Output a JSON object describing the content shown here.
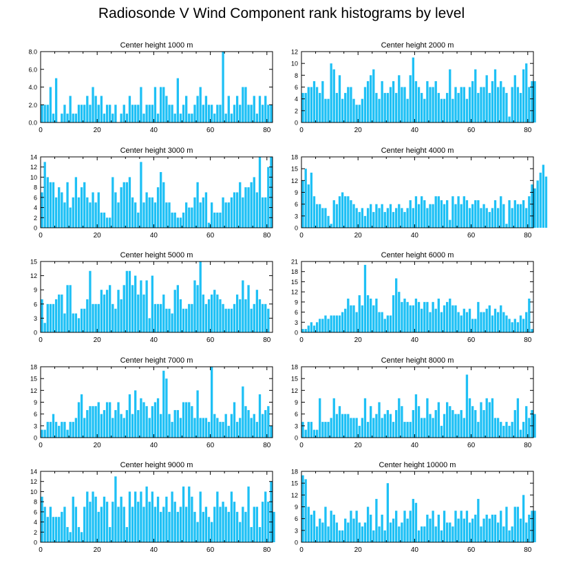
{
  "figure_title": "Radiosonde V Wind Component rank histograms by level",
  "chart_data": [
    {
      "type": "bar",
      "title": "Center height 1000 m",
      "xlim": [
        0,
        82
      ],
      "ylim": [
        0,
        8
      ],
      "xticks": [
        0,
        20,
        40,
        60,
        80
      ],
      "yticks": [
        "0.0",
        "2.0",
        "4.0",
        "6.0",
        "8.0"
      ],
      "values": [
        2,
        2,
        2,
        4,
        1,
        5,
        0,
        1,
        2,
        1,
        3,
        1,
        1,
        2,
        2,
        2,
        3,
        2,
        4,
        3,
        2,
        3,
        1,
        2,
        2,
        1,
        2,
        0,
        1,
        2,
        1,
        3,
        2,
        2,
        2,
        4,
        1,
        2,
        2,
        2,
        4,
        1,
        4,
        4,
        3,
        2,
        2,
        1,
        5,
        1,
        2,
        3,
        1,
        1,
        2,
        3,
        4,
        2,
        3,
        2,
        2,
        1,
        2,
        2,
        8,
        1,
        3,
        1,
        2,
        3,
        2,
        4,
        4,
        2,
        2,
        3,
        1,
        3,
        2,
        3,
        2,
        2
      ]
    },
    {
      "type": "bar",
      "title": "Center height 2000 m",
      "xlim": [
        0,
        82
      ],
      "ylim": [
        0,
        12
      ],
      "xticks": [
        0,
        20,
        40,
        60,
        80
      ],
      "yticks": [
        "0",
        "2",
        "4",
        "6",
        "8",
        "10",
        "12"
      ],
      "values": [
        5,
        5,
        6,
        6,
        7,
        6,
        5,
        7,
        4,
        4,
        10,
        9,
        5,
        8,
        4,
        5,
        6,
        6,
        4,
        3,
        3,
        4,
        6,
        7,
        8,
        9,
        5,
        4,
        7,
        5,
        5,
        6,
        7,
        5,
        8,
        6,
        6,
        4,
        8,
        11,
        7,
        6,
        5,
        4,
        7,
        6,
        6,
        7,
        5,
        4,
        4,
        5,
        9,
        4,
        6,
        5,
        6,
        6,
        4,
        6,
        7,
        9,
        5,
        6,
        6,
        8,
        5,
        7,
        9,
        6,
        7,
        6,
        5,
        1,
        6,
        8,
        6,
        5,
        9,
        10,
        6,
        7,
        7
      ]
    },
    {
      "type": "bar",
      "title": "Center height 3000 m",
      "xlim": [
        0,
        82
      ],
      "ylim": [
        0,
        14
      ],
      "xticks": [
        0,
        20,
        40,
        60,
        80
      ],
      "yticks": [
        "0",
        "2",
        "4",
        "6",
        "8",
        "10",
        "12",
        "14"
      ],
      "values": [
        7,
        13,
        10,
        9,
        9,
        6,
        8,
        7,
        5,
        9,
        4,
        6,
        10,
        6,
        8,
        9,
        6,
        5,
        7,
        5,
        7,
        3,
        3,
        2,
        2,
        10,
        7,
        5,
        8,
        9,
        9,
        10,
        6,
        5,
        3,
        13,
        5,
        7,
        6,
        6,
        5,
        8,
        11,
        9,
        5,
        5,
        3,
        3,
        2,
        2,
        3,
        5,
        4,
        4,
        6,
        9,
        5,
        6,
        7,
        1,
        5,
        3,
        3,
        3,
        6,
        5,
        5,
        6,
        7,
        7,
        9,
        6,
        8,
        8,
        9,
        10,
        7,
        14,
        6,
        6,
        12,
        14
      ]
    },
    {
      "type": "bar",
      "title": "Center height 4000 m",
      "xlim": [
        0,
        82
      ],
      "ylim": [
        0,
        18
      ],
      "xticks": [
        0,
        20,
        40,
        60,
        80
      ],
      "yticks": [
        "0",
        "3",
        "6",
        "9",
        "12",
        "15",
        "18"
      ],
      "values": [
        12,
        15,
        11,
        14,
        8,
        6,
        6,
        5,
        5,
        3,
        1,
        7,
        6,
        8,
        9,
        8,
        8,
        7,
        6,
        5,
        4,
        5,
        3,
        5,
        6,
        4,
        6,
        5,
        6,
        4,
        5,
        6,
        4,
        5,
        6,
        5,
        4,
        5,
        7,
        5,
        8,
        6,
        8,
        7,
        5,
        6,
        6,
        8,
        8,
        7,
        6,
        7,
        2,
        8,
        6,
        8,
        6,
        8,
        7,
        5,
        6,
        7,
        7,
        5,
        6,
        5,
        4,
        5,
        7,
        5,
        8,
        6,
        1,
        7,
        5,
        7,
        6,
        6,
        7,
        5,
        8,
        11,
        10,
        12,
        14,
        16,
        13
      ]
    },
    {
      "type": "bar",
      "title": "Center height 5000 m",
      "xlim": [
        0,
        82
      ],
      "ylim": [
        0,
        15
      ],
      "xticks": [
        0,
        20,
        40,
        60,
        80
      ],
      "yticks": [
        "0",
        "3",
        "6",
        "9",
        "12",
        "15"
      ],
      "values": [
        7,
        2,
        6,
        6,
        6,
        7,
        8,
        8,
        4,
        10,
        10,
        4,
        4,
        3,
        5,
        5,
        7,
        13,
        6,
        6,
        6,
        9,
        8,
        9,
        10,
        6,
        5,
        9,
        7,
        10,
        13,
        13,
        10,
        12,
        8,
        11,
        8,
        11,
        3,
        12,
        6,
        6,
        6,
        8,
        5,
        5,
        4,
        9,
        10,
        7,
        5,
        5,
        6,
        6,
        11,
        10,
        15,
        8,
        6,
        7,
        8,
        9,
        8,
        7,
        6,
        5,
        5,
        5,
        6,
        8,
        7,
        11,
        7,
        10,
        5,
        6,
        9,
        7,
        6,
        6,
        5
      ]
    },
    {
      "type": "bar",
      "title": "Center height 6000 m",
      "xlim": [
        0,
        82
      ],
      "ylim": [
        0,
        21
      ],
      "xticks": [
        0,
        20,
        40,
        60,
        80
      ],
      "yticks": [
        "0",
        "3",
        "6",
        "9",
        "12",
        "15",
        "18",
        "21"
      ],
      "values": [
        1,
        1,
        2,
        3,
        2,
        3,
        4,
        4,
        5,
        4,
        5,
        5,
        5,
        5,
        6,
        7,
        10,
        8,
        8,
        6,
        11,
        8,
        20,
        11,
        10,
        8,
        10,
        6,
        6,
        4,
        5,
        5,
        11,
        16,
        12,
        9,
        10,
        9,
        8,
        8,
        10,
        9,
        7,
        9,
        9,
        6,
        9,
        7,
        10,
        6,
        8,
        9,
        10,
        8,
        8,
        6,
        5,
        7,
        6,
        7,
        4,
        4,
        9,
        6,
        6,
        7,
        8,
        5,
        7,
        6,
        8,
        6,
        5,
        4,
        3,
        4,
        3,
        5,
        4,
        6,
        10,
        1
      ]
    },
    {
      "type": "bar",
      "title": "Center height 7000 m",
      "xlim": [
        0,
        82
      ],
      "ylim": [
        0,
        18
      ],
      "xticks": [
        0,
        20,
        40,
        60,
        80
      ],
      "yticks": [
        "0",
        "3",
        "6",
        "9",
        "12",
        "15",
        "18"
      ],
      "values": [
        2,
        2,
        4,
        4,
        6,
        4,
        3,
        4,
        4,
        2,
        4,
        4,
        5,
        9,
        11,
        5,
        7,
        8,
        8,
        8,
        9,
        6,
        7,
        9,
        9,
        5,
        7,
        9,
        6,
        5,
        7,
        11,
        6,
        12,
        7,
        10,
        9,
        8,
        5,
        8,
        9,
        10,
        6,
        17,
        15,
        6,
        4,
        7,
        7,
        5,
        9,
        9,
        9,
        8,
        5,
        12,
        5,
        5,
        5,
        4,
        18,
        6,
        5,
        4,
        4,
        6,
        3,
        6,
        9,
        4,
        5,
        13,
        8,
        7,
        5,
        6,
        4,
        11,
        6,
        7,
        8,
        3
      ]
    },
    {
      "type": "bar",
      "title": "Center height 8000 m",
      "xlim": [
        0,
        82
      ],
      "ylim": [
        0,
        18
      ],
      "xticks": [
        0,
        20,
        40,
        60,
        80
      ],
      "yticks": [
        "0",
        "3",
        "6",
        "9",
        "12",
        "15",
        "18"
      ],
      "values": [
        4,
        2,
        4,
        4,
        2,
        2,
        10,
        4,
        4,
        4,
        5,
        10,
        6,
        8,
        6,
        6,
        6,
        5,
        5,
        5,
        3,
        5,
        10,
        4,
        8,
        5,
        6,
        9,
        5,
        6,
        7,
        6,
        4,
        7,
        10,
        8,
        4,
        4,
        4,
        7,
        11,
        8,
        5,
        5,
        10,
        6,
        5,
        7,
        9,
        3,
        6,
        9,
        8,
        7,
        6,
        6,
        7,
        5,
        16,
        10,
        8,
        7,
        4,
        9,
        7,
        10,
        9,
        10,
        5,
        5,
        4,
        3,
        4,
        3,
        4,
        7,
        10,
        2,
        4,
        8,
        5,
        7,
        6
      ]
    },
    {
      "type": "bar",
      "title": "Center height 9000 m",
      "xlim": [
        0,
        82
      ],
      "ylim": [
        0,
        14
      ],
      "xticks": [
        0,
        20,
        40,
        60,
        80
      ],
      "yticks": [
        "0",
        "2",
        "4",
        "6",
        "8",
        "10",
        "12",
        "14"
      ],
      "values": [
        9,
        7,
        5,
        7,
        5,
        5,
        5,
        6,
        7,
        3,
        2,
        9,
        7,
        3,
        2,
        7,
        10,
        8,
        10,
        9,
        6,
        7,
        9,
        8,
        3,
        8,
        13,
        7,
        9,
        7,
        3,
        10,
        7,
        10,
        8,
        10,
        7,
        11,
        8,
        10,
        7,
        9,
        6,
        7,
        9,
        6,
        10,
        8,
        6,
        7,
        11,
        7,
        11,
        9,
        6,
        4,
        10,
        6,
        7,
        5,
        4,
        7,
        10,
        7,
        8,
        7,
        6,
        10,
        8,
        6,
        4,
        7,
        6,
        11,
        3,
        7,
        7,
        3,
        8,
        10,
        8,
        12,
        6
      ]
    },
    {
      "type": "bar",
      "title": "Center height 10000 m",
      "xlim": [
        0,
        82
      ],
      "ylim": [
        0,
        18
      ],
      "xticks": [
        0,
        20,
        40,
        60,
        80
      ],
      "yticks": [
        "0",
        "3",
        "6",
        "9",
        "12",
        "15",
        "18"
      ],
      "values": [
        17,
        16,
        9,
        7,
        8,
        4,
        6,
        5,
        9,
        4,
        8,
        7,
        5,
        3,
        3,
        6,
        5,
        8,
        6,
        8,
        5,
        4,
        5,
        9,
        7,
        3,
        11,
        4,
        7,
        3,
        15,
        5,
        6,
        8,
        4,
        5,
        8,
        6,
        8,
        11,
        10,
        3,
        4,
        4,
        7,
        6,
        8,
        4,
        7,
        3,
        8,
        5,
        5,
        4,
        8,
        6,
        8,
        6,
        8,
        5,
        6,
        7,
        11,
        4,
        6,
        7,
        6,
        7,
        7,
        5,
        8,
        4,
        9,
        3,
        4,
        9,
        9,
        6,
        12,
        5,
        7,
        8,
        8
      ]
    }
  ]
}
